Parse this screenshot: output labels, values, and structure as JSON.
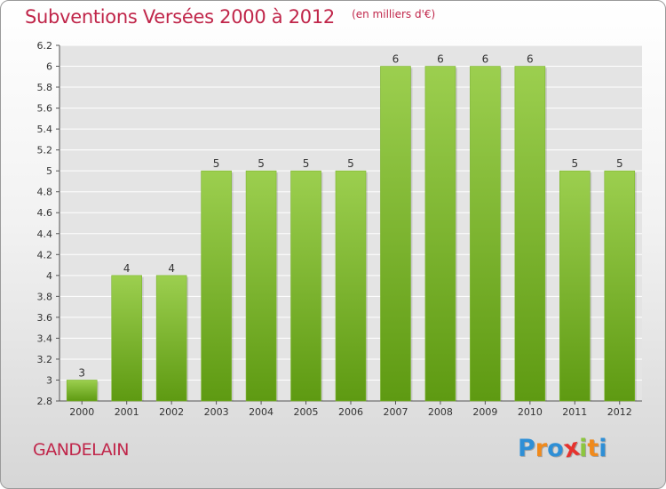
{
  "chart_data": {
    "type": "bar",
    "title": "Subventions Versées 2000 à 2012",
    "subtitle": "(en milliers d'€)",
    "xlabel": "",
    "ylabel": "",
    "categories": [
      "2000",
      "2001",
      "2002",
      "2003",
      "2004",
      "2005",
      "2006",
      "2007",
      "2008",
      "2009",
      "2010",
      "2011",
      "2012"
    ],
    "values": [
      3,
      4,
      4,
      5,
      5,
      5,
      5,
      6,
      6,
      6,
      6,
      5,
      5
    ],
    "data_labels": [
      "3",
      "4",
      "4",
      "5",
      "5",
      "5",
      "5",
      "6",
      "6",
      "6",
      "6",
      "5",
      "5"
    ],
    "ylim": [
      2.8,
      6.2
    ],
    "yticks": [
      2.8,
      3,
      3.2,
      3.4,
      3.6,
      3.8,
      4,
      4.2,
      4.4,
      4.6,
      4.8,
      5,
      5.2,
      5.4,
      5.6,
      5.8,
      6,
      6.2
    ],
    "ytick_labels": [
      "2.8",
      "3",
      "3.2",
      "3.4",
      "3.6",
      "3.8",
      "4",
      "4.2",
      "4.4",
      "4.6",
      "4.8",
      "5",
      "5.2",
      "5.4",
      "5.6",
      "5.8",
      "6",
      "6.2"
    ],
    "grid": true,
    "colors": {
      "bar_light": "#9ccf4f",
      "bar_dark": "#5e9a12",
      "title": "#c0264a",
      "axis_text": "#333333",
      "grid": "#ffffff"
    }
  },
  "footer": {
    "place_name": "GANDELAIN"
  },
  "logo": {
    "text": "Proxiti",
    "letters": [
      {
        "ch": "P",
        "color": "#2e8fd6"
      },
      {
        "ch": "r",
        "color": "#f08a1c"
      },
      {
        "ch": "o",
        "color": "#2e8fd6"
      },
      {
        "ch": "x",
        "color": "#e6322e"
      },
      {
        "ch": "i",
        "color": "#8cc63f"
      },
      {
        "ch": "t",
        "color": "#f08a1c"
      },
      {
        "ch": "i",
        "color": "#2e8fd6"
      }
    ]
  }
}
